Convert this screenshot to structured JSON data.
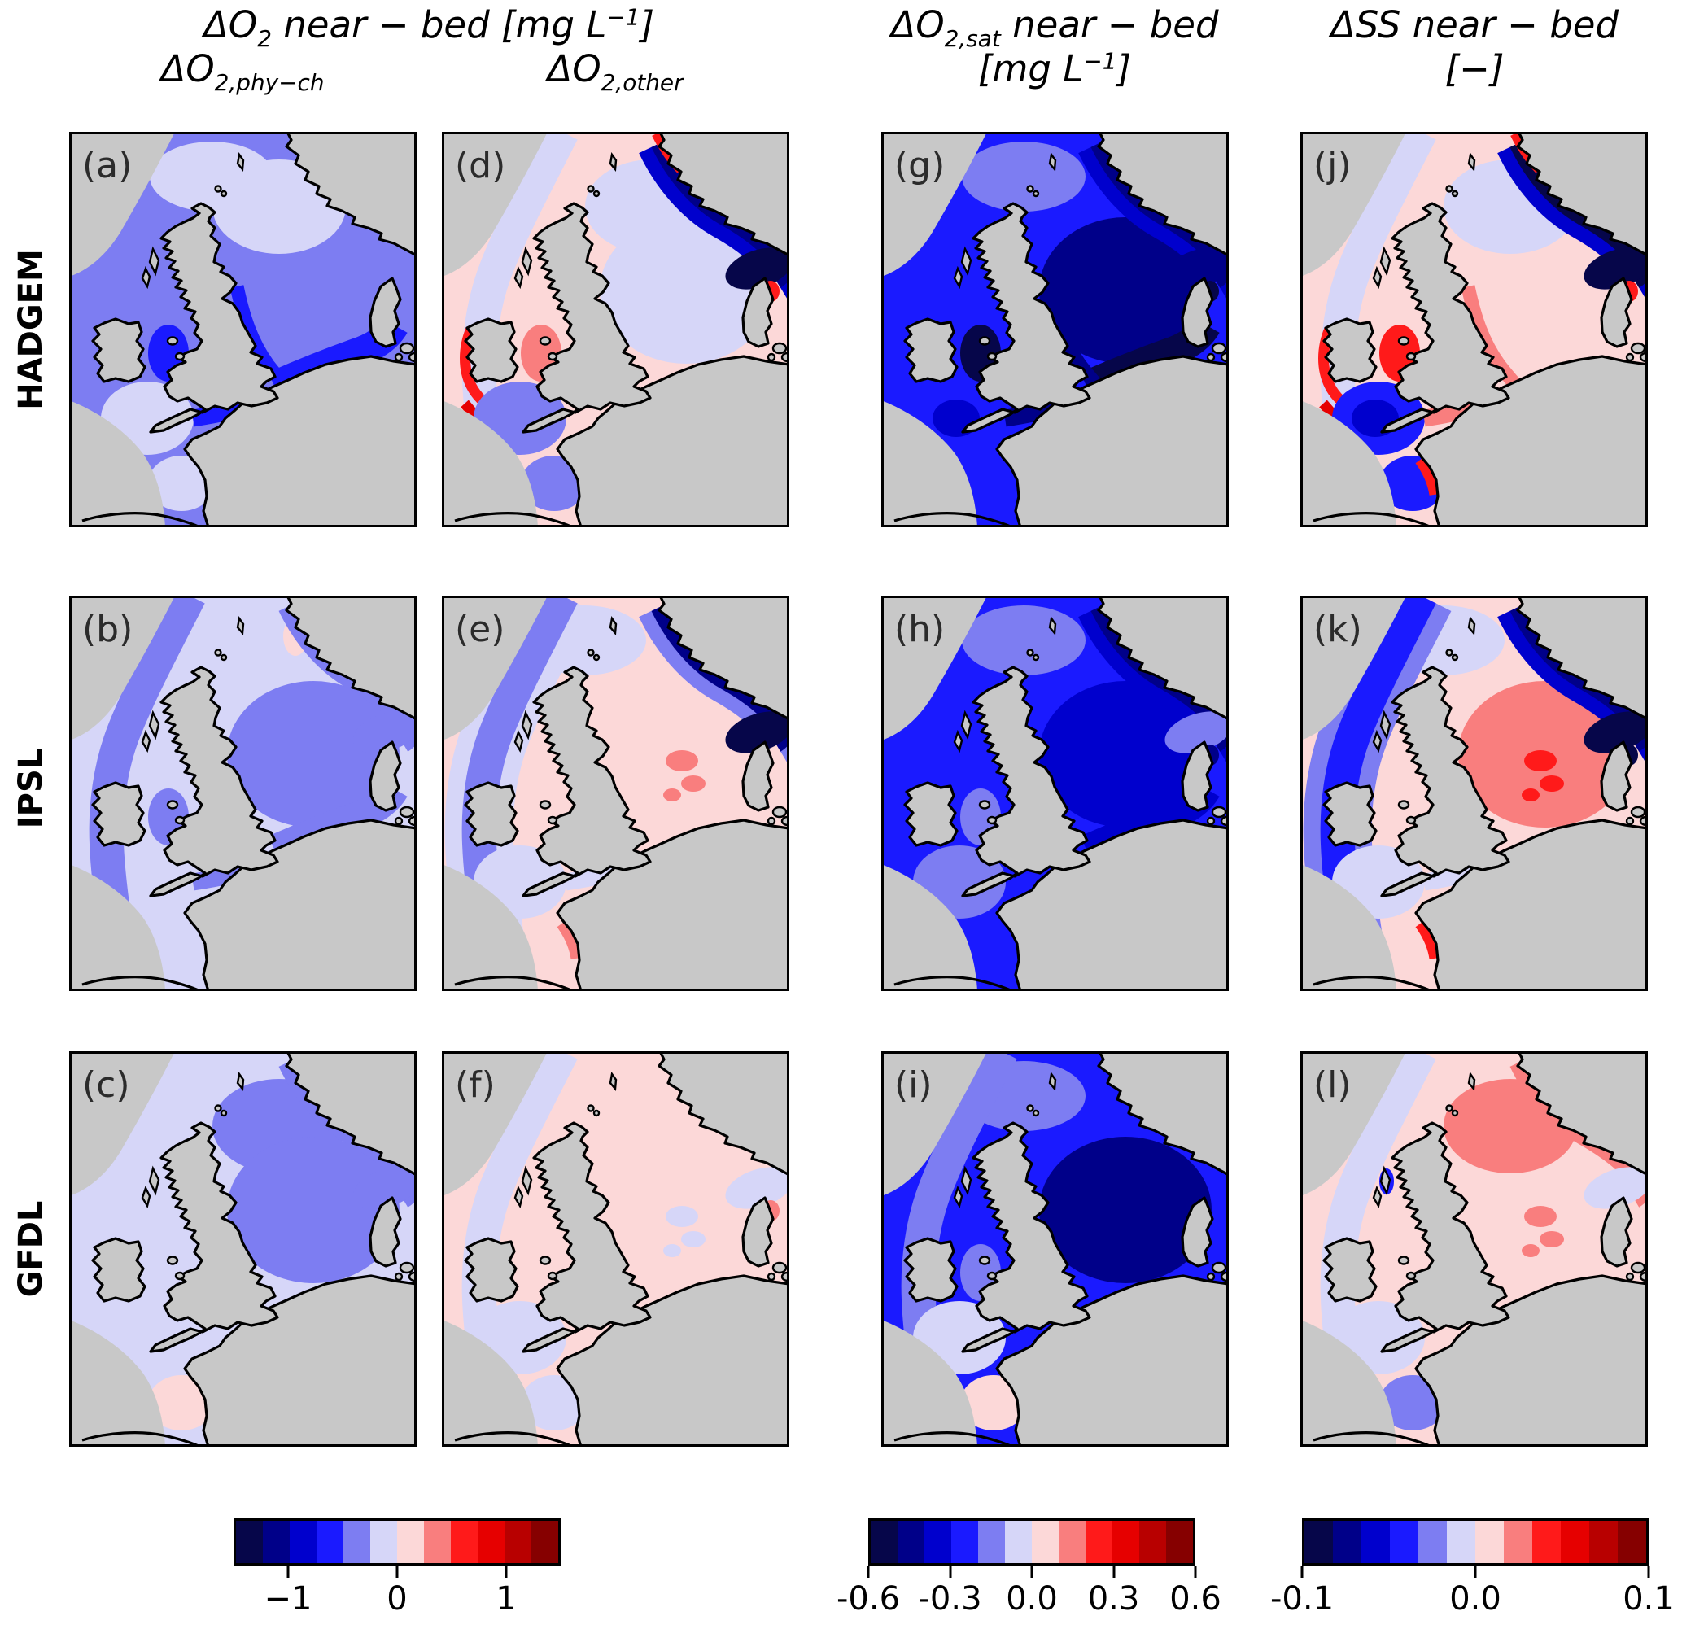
{
  "figure": {
    "background": "#ffffff",
    "land_color": "#c8c8c8",
    "coast_color": "#000000",
    "frame_color": "#000000"
  },
  "palette": {
    "navy1": "#06064a",
    "navy2": "#000089",
    "blue3": "#0000cd",
    "blue4": "#1a1aff",
    "peri": "#7d7df2",
    "lav": "#d6d6f8",
    "pink": "#fcd8d8",
    "sal": "#f97e7e",
    "red9": "#ff1a1a",
    "red10": "#e60000",
    "red11": "#b80000",
    "mar": "#860000"
  },
  "titles": {
    "group1": {
      "pre": "ΔO",
      "sub": "2",
      "mid": " near − bed [mg L",
      "sup": "−1",
      "post": "]"
    },
    "sub1": {
      "pre": "ΔO",
      "sub": "2,phy−ch"
    },
    "sub2": {
      "pre": "ΔO",
      "sub": "2,other"
    },
    "col3_line1": {
      "pre": "ΔO",
      "sub": "2,sat",
      "mid": " near − bed"
    },
    "col3_line2": {
      "pre": "[mg L",
      "sup": "−1",
      "post": "]"
    },
    "col4_line1": "ΔSS near − bed",
    "col4_line2": "[−]"
  },
  "rows": [
    {
      "label": "HADGEM"
    },
    {
      "label": "IPSL"
    },
    {
      "label": "GFDL"
    }
  ],
  "panels": [
    {
      "letter": "(a)",
      "zones": {
        "base": "peri",
        "nw": "lav",
        "ns_north": "lav",
        "ns_south": "blue4",
        "gb_east": "blue4",
        "irish": "blue4",
        "celtic": "lav",
        "channel": "blue4",
        "biscay": "lav"
      }
    },
    {
      "letter": "(d)",
      "zones": {
        "base": "pink",
        "ns_north": "lav",
        "ns_core": "lav",
        "atl": "lav",
        "west_rim": "red9",
        "sw_edge": "red10",
        "trench_outer": "blue3",
        "trench": "navy2",
        "skag": "navy1",
        "kat_spot": "red9",
        "irish": "sal",
        "celtic": "peri",
        "biscay": "peri",
        "top_rim": "red9"
      }
    },
    {
      "letter": "(g)",
      "zones": {
        "base": "blue4",
        "ns_pink_spot": "peri",
        "nw": "peri",
        "ns_core": "navy2",
        "ns_south": "navy1",
        "gb_east": "navy2",
        "trench_outer": "blue3",
        "trench": "navy2",
        "skag": "navy2",
        "kat_spot": "navy1",
        "irish": "navy1",
        "celtic_core": "blue3",
        "channel": "navy2"
      }
    },
    {
      "letter": "(j)",
      "zones": {
        "base": "pink",
        "atl": "lav",
        "west_rim": "red9",
        "sw_edge": "red10",
        "ns_north": "lav",
        "trench_outer": "blue3",
        "trench": "navy1",
        "skag": "navy1",
        "top_rim": "red9",
        "kat_spot": "red9",
        "celtic": "blue4",
        "celtic_core": "blue3",
        "irish": "red9",
        "gb_east": "sal",
        "channel": "sal",
        "biscay": "blue4",
        "brittany_streak": "red9"
      }
    },
    {
      "letter": "(b)",
      "zones": {
        "base": "lav",
        "ns_core": "peri",
        "ns_south": "peri",
        "trench": "peri",
        "skag": "peri",
        "ns_pink_spot": "pink",
        "atl": "peri",
        "irish": "peri",
        "channel": "peri"
      }
    },
    {
      "letter": "(e)",
      "zones": {
        "base": "pink",
        "atl_outer": "lav",
        "atl": "peri",
        "nw": "lav",
        "ns_spots": "sal",
        "trench_outer": "peri",
        "trench": "navy2",
        "skag": "navy1",
        "celtic": "lav",
        "channel": "lav",
        "brittany_streak": "sal"
      }
    },
    {
      "letter": "(h)",
      "zones": {
        "base": "blue4",
        "nw": "peri",
        "ns_core": "blue3",
        "ns_south": "blue3",
        "trench_outer": "blue3",
        "trench": "navy2",
        "skag": "peri",
        "ns_pink_spot": "pink",
        "kat_spot": "navy2",
        "irish": "peri",
        "celtic": "peri"
      }
    },
    {
      "letter": "(k)",
      "zones": {
        "base": "pink",
        "atl_outer": "peri",
        "atl": "blue4",
        "nw": "lav",
        "ns_core": "sal",
        "ns_spots": "red9",
        "trench_outer": "blue3",
        "trench": "navy2",
        "skag": "navy1",
        "kat_spot": "navy1",
        "celtic": "lav",
        "channel": "lav",
        "brittany_streak": "red9"
      }
    },
    {
      "letter": "(c)",
      "zones": {
        "base": "lav",
        "ns_north": "peri",
        "ns_core": "peri",
        "trench": "peri",
        "skag": "peri",
        "biscay": "pink"
      }
    },
    {
      "letter": "(f)",
      "zones": {
        "base": "pink",
        "celtic": "lav",
        "biscay": "lav",
        "atl": "lav",
        "ns_spots": "lav",
        "skag": "lav",
        "kat_spot": "sal"
      }
    },
    {
      "letter": "(i)",
      "zones": {
        "base": "blue4",
        "atl": "peri",
        "nw": "peri",
        "ns_core": "navy2",
        "celtic": "lav",
        "biscay": "pink",
        "irish": "peri"
      }
    },
    {
      "letter": "(l)",
      "zones": {
        "base": "pink",
        "ns_north": "sal",
        "trench": "sal",
        "ns_spots": "sal",
        "celtic": "lav",
        "atl": "lav",
        "skag": "lav",
        "biscay": "peri",
        "heb_spot": "blue4"
      }
    }
  ],
  "colorbars": [
    {
      "colors": [
        "#06064a",
        "#000089",
        "#0000cd",
        "#1a1aff",
        "#7d7df2",
        "#d6d6f8",
        "#fcd8d8",
        "#f97e7e",
        "#ff1a1a",
        "#e60000",
        "#b80000",
        "#860000"
      ],
      "ticks": [
        {
          "label": "−1",
          "pos": 16.67
        },
        {
          "label": "0",
          "pos": 50
        },
        {
          "label": "1",
          "pos": 83.33
        }
      ]
    },
    {
      "colors": [
        "#06064a",
        "#000089",
        "#0000cd",
        "#1a1aff",
        "#7d7df2",
        "#d6d6f8",
        "#fcd8d8",
        "#f97e7e",
        "#ff1a1a",
        "#e60000",
        "#b80000",
        "#860000"
      ],
      "ticks": [
        {
          "label": "-0.6",
          "pos": 0
        },
        {
          "label": "-0.3",
          "pos": 25
        },
        {
          "label": "0.0",
          "pos": 50
        },
        {
          "label": "0.3",
          "pos": 75
        },
        {
          "label": "0.6",
          "pos": 100
        }
      ]
    },
    {
      "colors": [
        "#06064a",
        "#000089",
        "#0000cd",
        "#1a1aff",
        "#7d7df2",
        "#d6d6f8",
        "#fcd8d8",
        "#f97e7e",
        "#ff1a1a",
        "#e60000",
        "#b80000",
        "#860000"
      ],
      "ticks": [
        {
          "label": "-0.1",
          "pos": 0
        },
        {
          "label": "0.0",
          "pos": 50
        },
        {
          "label": "0.1",
          "pos": 100
        }
      ]
    }
  ],
  "chart_data": {
    "type": "heatmap",
    "layout": "3 rows (climate models) x 4 columns (variables); each panel is a filled-contour map of the NW European shelf seas (Ireland, Great Britain, North Sea, Norway, Denmark, continental coast)",
    "rows": [
      "HADGEM",
      "IPSL",
      "GFDL"
    ],
    "columns": [
      "ΔO2,phy-ch near-bed [mg L-1]",
      "ΔO2,other near-bed [mg L-1]",
      "ΔO2,sat near-bed [mg L-1]",
      "ΔSS near-bed [-]"
    ],
    "colorbars": [
      {
        "applies_to_columns": [
          1,
          2
        ],
        "range": [
          -1.5,
          1.5
        ],
        "ticks": [
          -1,
          0,
          1
        ],
        "levels": 12,
        "colormap": "dark blue - white - dark red (seismic-like), discrete"
      },
      {
        "applies_to_columns": [
          3
        ],
        "range": [
          -0.6,
          0.6
        ],
        "ticks": [
          -0.6,
          -0.3,
          0.0,
          0.3,
          0.6
        ],
        "levels": 12,
        "colormap": "dark blue - white - dark red (seismic-like), discrete"
      },
      {
        "applies_to_columns": [
          4
        ],
        "range": [
          -0.1,
          0.1
        ],
        "ticks": [
          -0.1,
          0.0,
          0.1
        ],
        "levels": 12,
        "colormap": "dark blue - white - dark red (seismic-like), discrete"
      }
    ],
    "panels": [
      {
        "id": "a",
        "row": "HADGEM",
        "column": "ΔO2,phy-ch",
        "summary": "Moderately negative (periwinkle ~-0.4) over whole shelf; lighter (~-0.15) north-central North Sea, Celtic Sea and NW; stronger negative (~-0.75) southern North Sea, Irish Sea and Channel"
      },
      {
        "id": "d",
        "row": "HADGEM",
        "column": "ΔO2,other",
        "summary": "Weak positive (~+0.1) over shelf; weak negative central North Sea; strong negative (-1 to -1.4) Norwegian Trench/Skagerrak; red streaks (~+0.8) along west Irish coast, Irish Sea and SW shelf edge"
      },
      {
        "id": "g",
        "row": "HADGEM",
        "column": "ΔO2,sat",
        "summary": "Strongly negative everywhere: ~-0.35 Atlantic inflow, -0.5 to -0.6 central/southern North Sea, Irish Sea and Channel darkest"
      },
      {
        "id": "j",
        "row": "HADGEM",
        "column": "ΔSS",
        "summary": "Weak positive (pink) shelf; very strong negative (~-0.1) Norwegian Trench/Skagerrak; negative blob (~-0.06) Celtic Sea; strong positive (red ~+0.08) west Irish coast, Irish Sea and shelf-edge/Channel fringes"
      },
      {
        "id": "b",
        "row": "IPSL",
        "column": "ΔO2,phy-ch",
        "summary": "Weak negative (~-0.15) overall; moderate negative (~-0.4) central/southern North Sea and along Norwegian coast band; tiny positive spot north"
      },
      {
        "id": "e",
        "row": "IPSL",
        "column": "ΔO2,other",
        "summary": "Weak positive (pink) North Sea with small salmon spots; lavender rim; moderate negative band west of Ireland; strong negative Norwegian Trench into Skagerrak (darkest)"
      },
      {
        "id": "h",
        "row": "IPSL",
        "column": "ΔO2,sat",
        "summary": "Negative everywhere (~-0.4); slightly darker (-0.5) central-SE North Sea; lighter (-0.25) NW approaches and near Skagerrak; tiny positive spot near Norway"
      },
      {
        "id": "k",
        "row": "IPSL",
        "column": "ΔSS",
        "summary": "Weak positive shelf with salmon/red patch (~+0.05) central North Sea; strong negative trench/Skagerrak; strong negative (~-0.07) Atlantic band west of Ireland; red streak near Brittany"
      },
      {
        "id": "c",
        "row": "GFDL",
        "column": "ΔO2,phy-ch",
        "summary": "Weak negative (~-0.15) west; uniform moderate negative (~-0.4) North Sea block including Skagerrak/Kattegat; weak positive Biscay"
      },
      {
        "id": "f",
        "row": "GFDL",
        "column": "ΔO2,other",
        "summary": "Weak positive (pink ~+0.1) nearly everywhere; lavender patches Celtic Sea/Biscay and scattered; tiny red dot near Norwegian coast"
      },
      {
        "id": "i",
        "row": "GFDL",
        "column": "ΔO2,sat",
        "summary": "Strong negative (~-0.45) North Sea with darker core (~-0.55); moderate negative west of GB/Ireland; very light Celtic/SW approaches; weak positive Biscay"
      },
      {
        "id": "l",
        "row": "GFDL",
        "column": "ΔSS",
        "summary": "Weak positive (pink) overall; salmon (~+0.04) northern North Sea and central streaks; lavender patches; small negative (blue) blob near Brittany and Hebrides spots"
      }
    ]
  }
}
